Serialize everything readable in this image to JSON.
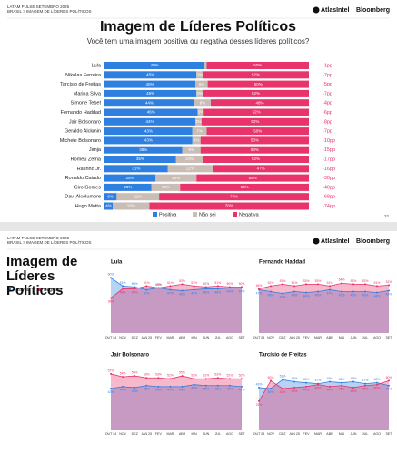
{
  "slides": [
    {
      "header_line1": "LATAM PULSE SETEMBRO 2025",
      "header_line2": "BRASIL > IMAGEM DE LÍDERES POLÍTICOS",
      "brand1": "AtlasIntel",
      "brand2": "Bloomberg",
      "title": "Imagem de Líderes Políticos",
      "subtitle": "Você tem uma imagem positiva ou negativa desses líderes políticos?",
      "page": "32"
    },
    {
      "header_line1": "LATAM PULSE SETEMBRO 2025",
      "header_line2": "BRASIL > IMAGEM DE LÍDERES POLÍTICOS",
      "brand1": "AtlasIntel",
      "brand2": "Bloomberg",
      "title": "Imagem de Líderes Políticos"
    }
  ],
  "chart_data": [
    {
      "type": "bar",
      "orientation": "horizontal",
      "stacked": true,
      "categories": [
        "Lula",
        "Nikolas Ferreira",
        "Tarcísio de Freitas",
        "Marina Silva",
        "Simone Tebet",
        "Fernando Haddad",
        "Jair Bolsonaro",
        "Geraldo Alckmin",
        "Michele Bolsonaro",
        "Janja",
        "Romeu Zema",
        "Ratinho Jr.",
        "Ronaldo Caiado",
        "Ciro Gomes",
        "Davi Alcolumbre",
        "Hugo Motta"
      ],
      "series": [
        {
          "name": "Positiva",
          "color": "#2f7fe0",
          "values": [
            49,
            45,
            45,
            45,
            44,
            46,
            44,
            43,
            43,
            38,
            35,
            31,
            25,
            23,
            6,
            4
          ],
          "value_labels": [
            "49%",
            "45%",
            "45%",
            "45%",
            "44%",
            "46%",
            "44%",
            "43%",
            "43%",
            "38%",
            "35%",
            "31%",
            "25%",
            "23%",
            "6%",
            "4%"
          ]
        },
        {
          "name": "Não sei",
          "color": "#c9bdb5",
          "values": [
            1,
            3,
            6,
            3,
            8,
            3,
            3,
            7,
            4,
            9,
            13,
            22,
            20,
            14,
            21,
            18
          ],
          "value_labels": [
            null,
            "3%",
            "6%",
            "3%",
            "8%",
            "3%",
            "3%",
            "7%",
            "4%",
            "9%",
            "13%",
            "22%",
            "20%",
            "14%",
            "21%",
            "18%"
          ]
        },
        {
          "name": "Negativa",
          "color": "#e8336b",
          "values": [
            50,
            52,
            50,
            52,
            48,
            52,
            52,
            50,
            53,
            53,
            52,
            47,
            55,
            63,
            74,
            78
          ],
          "value_labels": [
            "50%",
            "52%",
            "50%",
            "52%",
            "48%",
            "52%",
            "52%",
            "50%",
            "53%",
            "53%",
            "52%",
            "47%",
            "55%",
            "63%",
            "74%",
            "78%"
          ]
        }
      ],
      "net_labels": [
        "-1pp",
        "-7pp",
        "-5pp",
        "-7pp",
        "-4pp",
        "-6pp",
        "-8pp",
        "-7pp",
        "-10pp",
        "-15pp",
        "-17pp",
        "-16pp",
        "-30pp",
        "-40pp",
        "-68pp",
        "-74pp"
      ],
      "net_color": "#e8336b"
    },
    {
      "type": "area",
      "title": "Lula",
      "categories": [
        "OUT 24",
        "NOV",
        "DEZ",
        "JAN 25",
        "FEV",
        "MAR",
        "ABR",
        "MAI",
        "JUN",
        "JUL",
        "AGO",
        "SET"
      ],
      "series": [
        {
          "name": "Positiva",
          "color": "#2f7fe0",
          "values": [
            60,
            51,
            50,
            47,
            49,
            47,
            46,
            47,
            48,
            48,
            49,
            49
          ],
          "value_labels": [
            "60%",
            "51%",
            "50%",
            "47%",
            "49%",
            "47%",
            "46%",
            "47%",
            "48%",
            "48%",
            "49%",
            "49%"
          ]
        },
        {
          "name": "Negativa",
          "color": "#e8336b",
          "values": [
            38,
            48,
            48,
            51,
            49,
            51,
            53,
            51,
            50,
            51,
            50,
            50
          ],
          "value_labels": [
            "38%",
            "48%",
            "48%",
            "51%",
            "49%",
            "51%",
            "53%",
            "51%",
            "50%",
            "51%",
            "50%",
            "50%"
          ]
        }
      ]
    },
    {
      "type": "area",
      "title": "Fernando Haddad",
      "categories": [
        "OUT 24",
        "NOV",
        "DEZ",
        "JAN 25",
        "FEV",
        "MAR",
        "ABR",
        "MAI",
        "JUN",
        "JUL",
        "AGO",
        "SET"
      ],
      "series": [
        {
          "name": "Positiva",
          "color": "#2f7fe0",
          "values": [
            47,
            45,
            43,
            45,
            44,
            45,
            47,
            45,
            45,
            45,
            44,
            46
          ],
          "value_labels": [
            "47%",
            "45%",
            "43%",
            "45%",
            "44%",
            "45%",
            "47%",
            "45%",
            "45%",
            "45%",
            "44%",
            "46%"
          ]
        },
        {
          "name": "Negativa",
          "color": "#e8336b",
          "values": [
            48,
            51,
            53,
            51,
            53,
            53,
            51,
            54,
            53,
            53,
            51,
            52
          ],
          "value_labels": [
            "48%",
            "51%",
            "53%",
            "51%",
            "53%",
            "53%",
            "51%",
            "54%",
            "53%",
            "53%",
            "51%",
            "52%"
          ]
        }
      ]
    },
    {
      "type": "area",
      "title": "Jair Bolsonaro",
      "categories": [
        "OUT 24",
        "NOV",
        "DEZ",
        "JAN 25",
        "FEV",
        "MAR",
        "ABR",
        "MAI",
        "JUN",
        "JUL",
        "AGO",
        "SET"
      ],
      "series": [
        {
          "name": "Positiva",
          "color": "#2f7fe0",
          "values": [
            42,
            44,
            43,
            45,
            44,
            44,
            44,
            46,
            45,
            45,
            45,
            44
          ],
          "value_labels": [
            "42%",
            "44%",
            "43%",
            "45%",
            "44%",
            "44%",
            "44%",
            "46%",
            "45%",
            "45%",
            "45%",
            "44%"
          ]
        },
        {
          "name": "Negativa",
          "color": "#e8336b",
          "values": [
            57,
            54,
            55,
            53,
            53,
            52,
            55,
            52,
            52,
            53,
            52,
            52
          ],
          "value_labels": [
            "57%",
            "54%",
            "55%",
            "53%",
            "53%",
            "52%",
            "55%",
            "52%",
            "52%",
            "53%",
            "52%",
            "52%"
          ]
        }
      ]
    },
    {
      "type": "area",
      "title": "Tarcísio de Freitas",
      "categories": [
        "OUT 24",
        "NOV",
        "DEZ",
        "JAN 25",
        "FEV",
        "MAR",
        "ABR",
        "MAI",
        "JUN",
        "JUL",
        "AGO",
        "SET"
      ],
      "series": [
        {
          "name": "Positiva",
          "color": "#2f7fe0",
          "values": [
            43,
            42,
            51,
            49,
            48,
            47,
            49,
            48,
            49,
            47,
            48,
            45
          ],
          "value_labels": [
            "43%",
            "42%",
            "51%",
            "49%",
            "48%",
            "47%",
            "49%",
            "48%",
            "49%",
            "47%",
            "48%",
            "45%"
          ]
        },
        {
          "name": "Negativa",
          "color": "#e8336b",
          "values": [
            29,
            50,
            42,
            43,
            44,
            46,
            44,
            45,
            43,
            45,
            46,
            50
          ],
          "value_labels": [
            "29%",
            "50%",
            "42%",
            "43%",
            "44%",
            "46%",
            "44%",
            "45%",
            "43%",
            "45%",
            "46%",
            "50%"
          ]
        }
      ]
    }
  ]
}
